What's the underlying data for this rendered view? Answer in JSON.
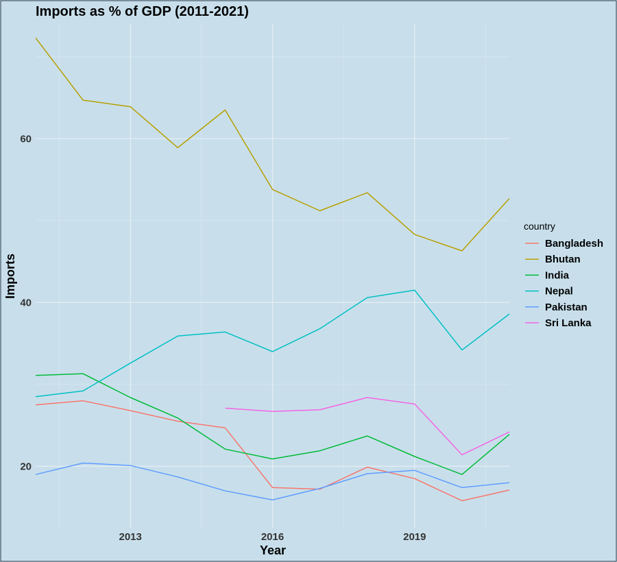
{
  "chart_data": {
    "type": "line",
    "title": "Imports as % of GDP (2011-2021)",
    "xlabel": "Year",
    "ylabel": "Imports",
    "xlim": [
      2011,
      2021
    ],
    "ylim": [
      12.5,
      74
    ],
    "x_ticks": [
      2013,
      2016,
      2019
    ],
    "y_ticks": [
      20,
      40,
      60
    ],
    "grid": true,
    "legend": {
      "title": "country",
      "placement": "right"
    },
    "series": [
      {
        "name": "Bangladesh",
        "color": "#F8766D",
        "x": [
          2011,
          2012,
          2013,
          2014,
          2015,
          2016,
          2017,
          2018,
          2019,
          2020,
          2021
        ],
        "y": [
          27.5,
          28.0,
          26.8,
          25.5,
          24.7,
          17.4,
          17.2,
          19.9,
          18.5,
          15.8,
          17.1
        ]
      },
      {
        "name": "Bhutan",
        "color": "#B79F00",
        "x": [
          2011,
          2012,
          2013,
          2014,
          2015,
          2016,
          2017,
          2018,
          2019,
          2020,
          2021
        ],
        "y": [
          72.3,
          64.7,
          63.9,
          58.9,
          63.5,
          53.8,
          51.2,
          53.4,
          48.3,
          46.3,
          52.7
        ]
      },
      {
        "name": "India",
        "color": "#00BA38",
        "x": [
          2011,
          2012,
          2013,
          2014,
          2015,
          2016,
          2017,
          2018,
          2019,
          2020,
          2021
        ],
        "y": [
          31.1,
          31.3,
          28.4,
          25.9,
          22.1,
          20.9,
          21.9,
          23.7,
          21.2,
          19.0,
          23.9
        ]
      },
      {
        "name": "Nepal",
        "color": "#00BFC4",
        "x": [
          2011,
          2012,
          2013,
          2014,
          2015,
          2016,
          2017,
          2018,
          2019,
          2020,
          2021
        ],
        "y": [
          28.5,
          29.2,
          32.6,
          35.9,
          36.4,
          34.0,
          36.8,
          40.6,
          41.5,
          34.2,
          38.6
        ]
      },
      {
        "name": "Pakistan",
        "color": "#619CFF",
        "x": [
          2011,
          2012,
          2013,
          2014,
          2015,
          2016,
          2017,
          2018,
          2019,
          2020,
          2021
        ],
        "y": [
          19.0,
          20.4,
          20.1,
          18.7,
          17.0,
          15.9,
          17.3,
          19.1,
          19.5,
          17.4,
          18.0
        ]
      },
      {
        "name": "Sri Lanka",
        "color": "#F564E3",
        "x": [
          2015,
          2016,
          2017,
          2018,
          2019,
          2020,
          2021
        ],
        "y": [
          27.1,
          26.7,
          26.9,
          28.4,
          27.6,
          21.4,
          24.2
        ]
      }
    ]
  }
}
